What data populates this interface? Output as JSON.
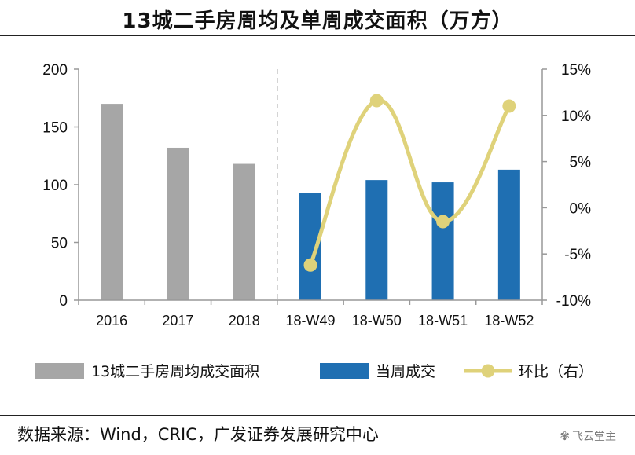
{
  "title": "13城二手房周均及单周成交面积（万方）",
  "source": "数据来源：Wind，CRIC，广发证券发展研究中心",
  "watermark": "飞云堂主",
  "colors": {
    "gray": "#a6a6a6",
    "blue": "#1f6fb2",
    "yellow": "#dfd27a",
    "axis": "#999999"
  },
  "chart_data": {
    "type": "bar",
    "title": "13城二手房周均及单周成交面积（万方）",
    "categories": [
      "2016",
      "2017",
      "2018",
      "18-W49",
      "18-W50",
      "18-W51",
      "18-W52"
    ],
    "series": [
      {
        "name": "13城二手房周均成交面积",
        "type": "bar",
        "axis": "left",
        "color": "#a6a6a6",
        "x": [
          "2016",
          "2017",
          "2018"
        ],
        "values": [
          170,
          132,
          118
        ]
      },
      {
        "name": "当周成交",
        "type": "bar",
        "axis": "left",
        "color": "#1f6fb2",
        "x": [
          "18-W49",
          "18-W50",
          "18-W51",
          "18-W52"
        ],
        "values": [
          93,
          104,
          102,
          113
        ]
      },
      {
        "name": "环比（右）",
        "type": "line",
        "axis": "right",
        "color": "#dfd27a",
        "smooth": true,
        "x": [
          "18-W49",
          "18-W50",
          "18-W51",
          "18-W52"
        ],
        "values": [
          -6.2,
          11.6,
          -1.5,
          11.0
        ]
      }
    ],
    "y_left": {
      "ylim": [
        0,
        200
      ],
      "ticks": [
        "0",
        "50",
        "100",
        "150",
        "200"
      ],
      "tick_values": [
        0,
        50,
        100,
        150,
        200
      ]
    },
    "y_right": {
      "ylim": [
        -10,
        15
      ],
      "ticks": [
        "-10%",
        "-5%",
        "0%",
        "5%",
        "10%",
        "15%"
      ],
      "tick_values": [
        -10,
        -5,
        0,
        5,
        10,
        15
      ]
    },
    "legend": {
      "position": "bottom",
      "items": [
        {
          "label": "13城二手房周均成交面积",
          "kind": "bar",
          "color": "#a6a6a6"
        },
        {
          "label": "当周成交",
          "kind": "bar",
          "color": "#1f6fb2"
        },
        {
          "label": "环比（右）",
          "kind": "line",
          "color": "#dfd27a"
        }
      ]
    },
    "separator_after_category": "2018",
    "grid": false
  }
}
